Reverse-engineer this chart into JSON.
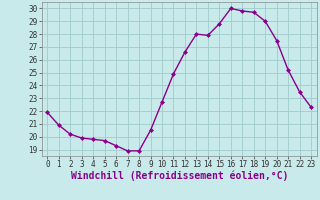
{
  "x": [
    0,
    1,
    2,
    3,
    4,
    5,
    6,
    7,
    8,
    9,
    10,
    11,
    12,
    13,
    14,
    15,
    16,
    17,
    18,
    19,
    20,
    21,
    22,
    23
  ],
  "y": [
    21.9,
    20.9,
    20.2,
    19.9,
    19.8,
    19.7,
    19.3,
    18.9,
    18.9,
    20.5,
    22.7,
    24.9,
    26.6,
    28.0,
    27.9,
    28.8,
    30.0,
    29.8,
    29.7,
    29.0,
    27.5,
    25.2,
    23.5,
    22.3
  ],
  "xlim": [
    -0.5,
    23.5
  ],
  "ylim": [
    18.5,
    30.5
  ],
  "yticks": [
    19,
    20,
    21,
    22,
    23,
    24,
    25,
    26,
    27,
    28,
    29,
    30
  ],
  "xticks": [
    0,
    1,
    2,
    3,
    4,
    5,
    6,
    7,
    8,
    9,
    10,
    11,
    12,
    13,
    14,
    15,
    16,
    17,
    18,
    19,
    20,
    21,
    22,
    23
  ],
  "xlabel": "Windchill (Refroidissement éolien,°C)",
  "line_color": "#8b008b",
  "marker": "D",
  "marker_size": 2.0,
  "line_width": 1.0,
  "bg_color": "#c8eaea",
  "grid_color": "#a0cccc",
  "tick_fontsize": 5.5,
  "xlabel_fontsize": 7.0
}
